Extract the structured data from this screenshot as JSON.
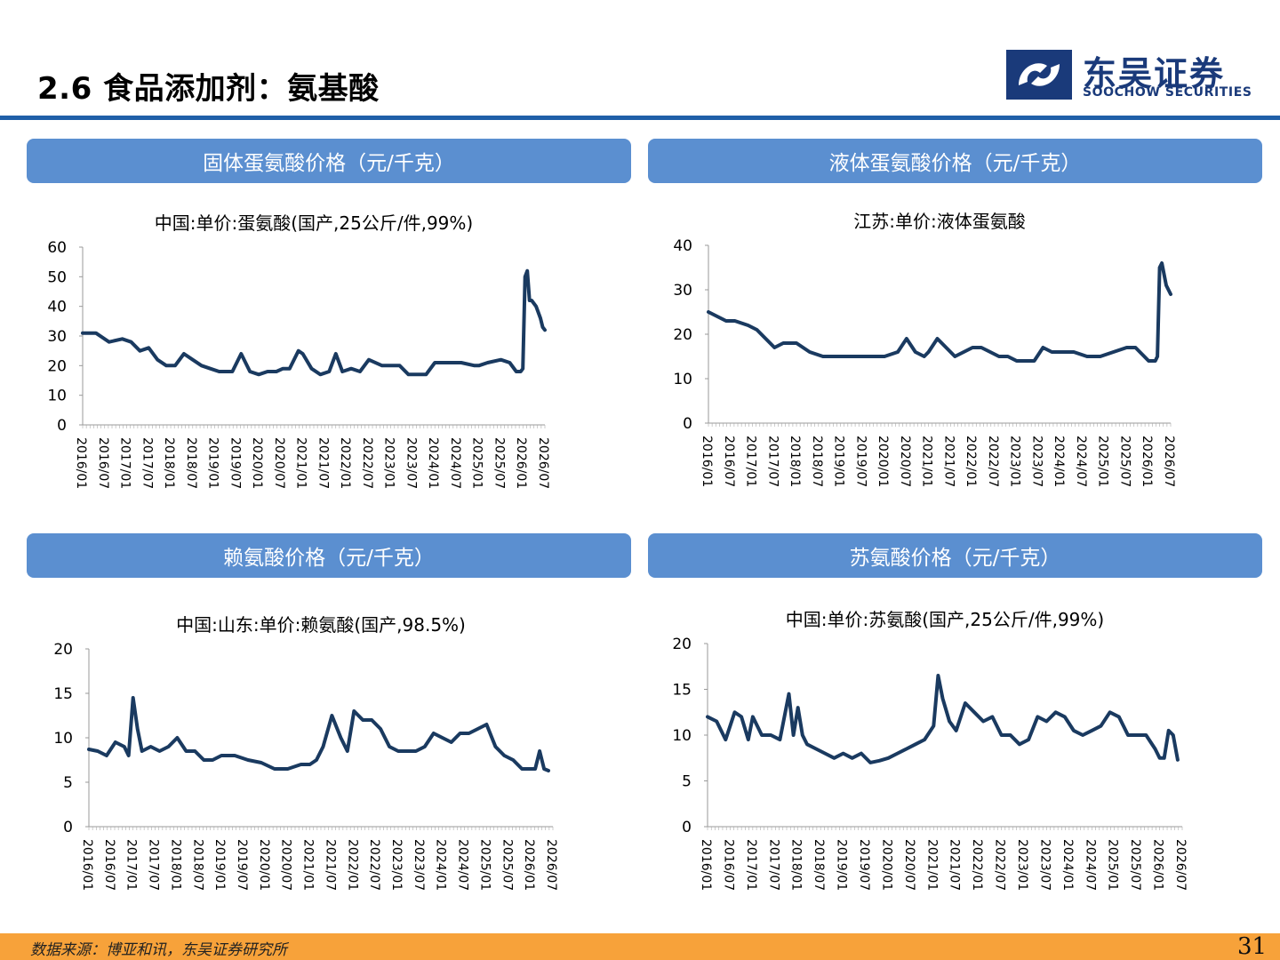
{
  "page": {
    "title": "2.6 食品添加剂：氨基酸",
    "logo_cn": "东吴证券",
    "logo_en": "SOOCHOW SECURITIES",
    "source": "数据来源：博亚和讯，东吴证券研究所",
    "page_number": "31"
  },
  "colors": {
    "series": "#1a3a60",
    "header_bg": "#5b8fd0",
    "rule": "#1f5fa8",
    "footer": "#f7a23a",
    "brand": "#1a3a7a"
  },
  "panels": [
    {
      "header": "固体蛋氨酸价格（元/千克）"
    },
    {
      "header": "液体蛋氨酸价格（元/千克）"
    },
    {
      "header": "赖氨酸价格（元/千克）"
    },
    {
      "header": "苏氨酸价格（元/千克）"
    }
  ],
  "chart_data": [
    {
      "type": "line",
      "title": "中国:单价:蛋氨酸(国产,25公斤/件,99%)",
      "ylim": [
        0,
        60
      ],
      "yticks": [
        "0",
        "10",
        "20",
        "30",
        "40",
        "50",
        "60"
      ],
      "xticks": [
        "2016/01",
        "2016/07",
        "2017/01",
        "2017/07",
        "2018/01",
        "2018/07",
        "2019/01",
        "2019/07",
        "2020/01",
        "2020/07",
        "2021/01",
        "2021/07",
        "2022/01",
        "2022/07",
        "2023/01",
        "2023/07",
        "2024/01",
        "2024/07",
        "2025/01",
        "2025/07",
        "2026/01",
        "2026/07"
      ],
      "x": [
        2016.0,
        2016.3,
        2016.6,
        2016.9,
        2017.1,
        2017.3,
        2017.5,
        2017.7,
        2017.9,
        2018.1,
        2018.3,
        2018.5,
        2018.7,
        2018.9,
        2019.1,
        2019.4,
        2019.6,
        2019.8,
        2020.0,
        2020.2,
        2020.4,
        2020.55,
        2020.7,
        2020.9,
        2021.0,
        2021.2,
        2021.4,
        2021.6,
        2021.75,
        2021.9,
        2022.1,
        2022.3,
        2022.5,
        2022.8,
        2023.0,
        2023.2,
        2023.4,
        2023.6,
        2023.8,
        2024.0,
        2024.3,
        2024.6,
        2024.9,
        2025.0,
        2025.2,
        2025.5,
        2025.7,
        2025.85,
        2025.95,
        2026.0,
        2026.05,
        2026.1,
        2026.15,
        2026.2,
        2026.3,
        2026.4,
        2026.45,
        2026.5
      ],
      "series": [
        {
          "values": [
            31,
            31,
            28,
            29,
            28,
            25,
            26,
            22,
            20,
            20,
            24,
            22,
            20,
            19,
            18,
            18,
            24,
            18,
            17,
            18,
            18,
            19,
            19,
            25,
            24,
            19,
            17,
            18,
            24,
            18,
            19,
            18,
            22,
            20,
            20,
            20,
            17,
            17,
            17,
            21,
            21,
            21,
            20,
            20,
            21,
            22,
            21,
            18,
            18,
            19,
            50,
            52,
            42,
            42,
            40,
            36,
            33,
            32
          ]
        }
      ]
    },
    {
      "type": "line",
      "title": "江苏:单价:液体蛋氨酸",
      "ylim": [
        0,
        40
      ],
      "yticks": [
        "0",
        "10",
        "20",
        "30",
        "40"
      ],
      "xticks": [
        "2016/01",
        "2016/07",
        "2017/01",
        "2017/07",
        "2018/01",
        "2018/07",
        "2019/01",
        "2019/07",
        "2020/01",
        "2020/07",
        "2021/01",
        "2021/07",
        "2022/01",
        "2022/07",
        "2023/01",
        "2023/07",
        "2024/01",
        "2024/07",
        "2025/01",
        "2025/07",
        "2026/01",
        "2026/07"
      ],
      "x": [
        2016.0,
        2016.2,
        2016.4,
        2016.6,
        2016.9,
        2017.1,
        2017.3,
        2017.5,
        2017.7,
        2018.0,
        2018.3,
        2018.6,
        2018.9,
        2019.2,
        2019.5,
        2019.8,
        2020.0,
        2020.3,
        2020.5,
        2020.7,
        2020.9,
        2021.0,
        2021.2,
        2021.4,
        2021.6,
        2021.8,
        2022.0,
        2022.2,
        2022.4,
        2022.6,
        2022.8,
        2023.0,
        2023.2,
        2023.4,
        2023.6,
        2023.8,
        2024.0,
        2024.3,
        2024.6,
        2024.9,
        2025.2,
        2025.5,
        2025.7,
        2025.9,
        2026.0,
        2026.1,
        2026.15,
        2026.2,
        2026.25,
        2026.3,
        2026.4,
        2026.5
      ],
      "series": [
        {
          "values": [
            25,
            24,
            23,
            23,
            22,
            21,
            19,
            17,
            18,
            18,
            16,
            15,
            15,
            15,
            15,
            15,
            15,
            16,
            19,
            16,
            15,
            16,
            19,
            17,
            15,
            16,
            17,
            17,
            16,
            15,
            15,
            14,
            14,
            14,
            17,
            16,
            16,
            16,
            15,
            15,
            16,
            17,
            17,
            15,
            14,
            14,
            14,
            15,
            35,
            36,
            31,
            29
          ]
        }
      ]
    },
    {
      "type": "line",
      "title": "中国:山东:单价:赖氨酸(国产,98.5%)",
      "ylim": [
        0,
        20
      ],
      "yticks": [
        "0",
        "5",
        "10",
        "15",
        "20"
      ],
      "xticks": [
        "2016/01",
        "2016/07",
        "2017/01",
        "2017/07",
        "2018/01",
        "2018/07",
        "2019/01",
        "2019/07",
        "2020/01",
        "2020/07",
        "2021/01",
        "2021/07",
        "2022/01",
        "2022/07",
        "2023/01",
        "2023/07",
        "2024/01",
        "2024/07",
        "2025/01",
        "2025/07",
        "2026/01",
        "2026/07"
      ],
      "x": [
        2016.0,
        2016.2,
        2016.4,
        2016.6,
        2016.8,
        2016.9,
        2017.0,
        2017.1,
        2017.2,
        2017.4,
        2017.6,
        2017.8,
        2018.0,
        2018.2,
        2018.4,
        2018.6,
        2018.8,
        2019.0,
        2019.3,
        2019.6,
        2019.9,
        2020.2,
        2020.5,
        2020.8,
        2021.0,
        2021.15,
        2021.3,
        2021.5,
        2021.7,
        2021.85,
        2022.0,
        2022.2,
        2022.4,
        2022.6,
        2022.8,
        2023.0,
        2023.2,
        2023.4,
        2023.6,
        2023.8,
        2024.0,
        2024.2,
        2024.4,
        2024.6,
        2024.8,
        2025.0,
        2025.2,
        2025.4,
        2025.6,
        2025.8,
        2026.0,
        2026.1,
        2026.2,
        2026.3,
        2026.4
      ],
      "series": [
        {
          "values": [
            8.7,
            8.5,
            8,
            9.5,
            9,
            8,
            14.5,
            11,
            8.5,
            9,
            8.5,
            9,
            10,
            8.5,
            8.5,
            7.5,
            7.5,
            8,
            8,
            7.5,
            7.2,
            6.5,
            6.5,
            7,
            7,
            7.5,
            9,
            12.5,
            10,
            8.5,
            13,
            12,
            12,
            11,
            9,
            8.5,
            8.5,
            8.5,
            9,
            10.5,
            10,
            9.5,
            10.5,
            10.5,
            11,
            11.5,
            9,
            8,
            7.5,
            6.5,
            6.5,
            6.5,
            8.5,
            6.5,
            6.3
          ]
        }
      ]
    },
    {
      "type": "line",
      "title": "中国:单价:苏氨酸(国产,25公斤/件,99%)",
      "ylim": [
        0,
        20
      ],
      "yticks": [
        "0",
        "5",
        "10",
        "15",
        "20"
      ],
      "xticks": [
        "2016/01",
        "2016/07",
        "2017/01",
        "2017/07",
        "2018/01",
        "2018/07",
        "2019/01",
        "2019/07",
        "2020/01",
        "2020/07",
        "2021/01",
        "2021/07",
        "2022/01",
        "2022/07",
        "2023/01",
        "2023/07",
        "2024/01",
        "2024/07",
        "2025/01",
        "2025/07",
        "2026/01",
        "2026/07"
      ],
      "x": [
        2016.0,
        2016.2,
        2016.4,
        2016.6,
        2016.75,
        2016.9,
        2017.0,
        2017.2,
        2017.4,
        2017.6,
        2017.8,
        2017.9,
        2018.0,
        2018.1,
        2018.2,
        2018.4,
        2018.6,
        2018.8,
        2019.0,
        2019.2,
        2019.4,
        2019.6,
        2019.8,
        2020.0,
        2020.2,
        2020.4,
        2020.6,
        2020.8,
        2021.0,
        2021.1,
        2021.2,
        2021.35,
        2021.5,
        2021.7,
        2021.9,
        2022.1,
        2022.3,
        2022.5,
        2022.7,
        2022.9,
        2023.1,
        2023.3,
        2023.5,
        2023.7,
        2023.9,
        2024.1,
        2024.3,
        2024.5,
        2024.7,
        2024.9,
        2025.1,
        2025.3,
        2025.5,
        2025.7,
        2025.9,
        2026.0,
        2026.1,
        2026.2,
        2026.3,
        2026.4
      ],
      "series": [
        {
          "values": [
            12,
            11.5,
            9.5,
            12.5,
            12,
            9.5,
            12,
            10,
            10,
            9.5,
            14.5,
            10,
            13,
            10,
            9,
            8.5,
            8,
            7.5,
            8,
            7.5,
            8,
            7,
            7.2,
            7.5,
            8,
            8.5,
            9,
            9.5,
            11,
            16.5,
            14,
            11.5,
            10.5,
            13.5,
            12.5,
            11.5,
            12,
            10,
            10,
            9,
            9.5,
            12,
            11.5,
            12.5,
            12,
            10.5,
            10,
            10.5,
            11,
            12.5,
            12,
            10,
            10,
            10,
            8.5,
            7.5,
            7.5,
            10.5,
            10,
            7.3
          ]
        }
      ]
    }
  ]
}
